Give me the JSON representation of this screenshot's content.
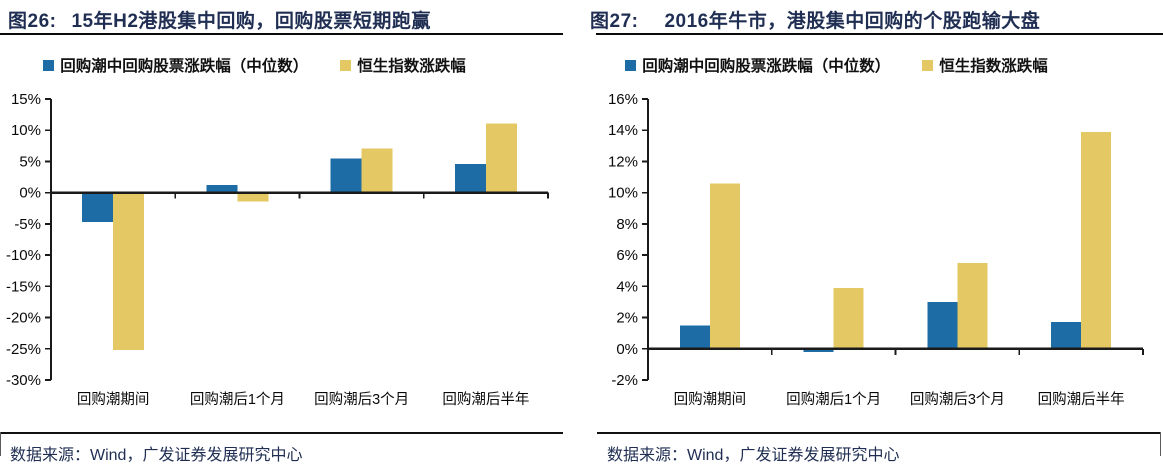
{
  "page": {
    "background": "#ffffff"
  },
  "source_note": "数据来源：Wind，广发证券发展研究中心",
  "colors": {
    "title_text": "#1F2E52",
    "axis": "#1a1a1a",
    "series_blue": "#1D6CA5",
    "series_gold": "#E3C863"
  },
  "chart_data": [
    {
      "type": "bar",
      "figure_label": "图26:",
      "title": "15年H2港股集中回购，回购股票短期跑赢",
      "categories": [
        "回购潮期间",
        "回购潮后1个月",
        "回购潮后3个月",
        "回购潮后半年"
      ],
      "series": [
        {
          "name": "回购潮中回购股票涨跌幅（中位数）",
          "color": "#1D6CA5",
          "values": [
            -4.7,
            1.2,
            5.5,
            4.6
          ]
        },
        {
          "name": "恒生指数涨跌幅",
          "color": "#E3C863",
          "values": [
            -25.2,
            -1.4,
            7.1,
            11.1
          ]
        }
      ],
      "ylim": [
        -30,
        15
      ],
      "yticks": [
        "15%",
        "10%",
        "5%",
        "0%",
        "-5%",
        "-10%",
        "-15%",
        "-20%",
        "-25%",
        "-30%"
      ],
      "grid": "off",
      "legend_position": "top"
    },
    {
      "type": "bar",
      "figure_label": "图27:",
      "title": "2016年牛市，港股集中回购的个股跑输大盘",
      "categories": [
        "回购潮期间",
        "回购潮后1个月",
        "回购潮后3个月",
        "回购潮后半年"
      ],
      "series": [
        {
          "name": "回购潮中回购股票涨跌幅（中位数）",
          "color": "#1D6CA5",
          "values": [
            1.5,
            -0.2,
            3.0,
            1.7
          ]
        },
        {
          "name": "恒生指数涨跌幅",
          "color": "#E3C863",
          "values": [
            10.6,
            3.9,
            5.5,
            13.9
          ]
        }
      ],
      "ylim": [
        -2,
        16
      ],
      "yticks": [
        "16%",
        "14%",
        "12%",
        "10%",
        "8%",
        "6%",
        "4%",
        "2%",
        "0%",
        "-2%"
      ],
      "grid": "off",
      "legend_position": "top"
    }
  ]
}
